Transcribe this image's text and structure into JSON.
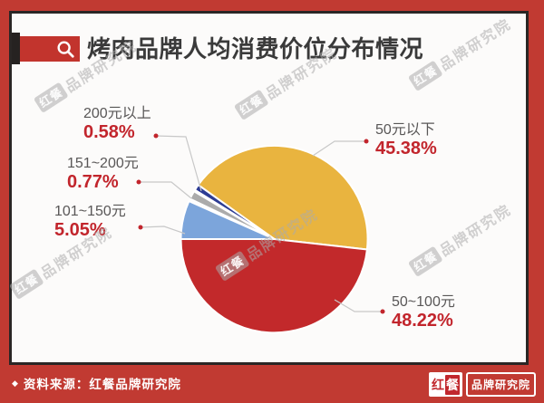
{
  "header": {
    "title": "烤肉品牌人均消费价位分布情况",
    "badge_icon": "magnifier",
    "badge_color": "#C2342D"
  },
  "chart_data": {
    "type": "pie",
    "title": "烤肉品牌人均消费价位分布情况",
    "value_format": "percent",
    "legend_position": "none",
    "slices": [
      {
        "id": "under-50",
        "label": "50元以下",
        "value": 45.38,
        "color": "#E9B43F"
      },
      {
        "id": "50-100",
        "label": "50~100元",
        "value": 48.22,
        "color": "#C2292B"
      },
      {
        "id": "101-150",
        "label": "101~150元",
        "value": 5.05,
        "color": "#7CA5DB"
      },
      {
        "id": "151-200",
        "label": "151~200元",
        "value": 0.77,
        "color": "#ABABAB"
      },
      {
        "id": "over-200",
        "label": "200元以上",
        "value": 0.58,
        "color": "#2D3C94"
      }
    ],
    "label_text_color": "#595757",
    "label_value_color": "#C2252C",
    "leader_line_color": "#C8C8C8"
  },
  "watermark": {
    "box_text": "红餐",
    "text": "品牌研究院"
  },
  "footer": {
    "bullet": "◆",
    "source_label": "资料来源：红餐品牌研究院",
    "logo_char_1": "红",
    "logo_char_2": "餐",
    "logo_text": "品牌研究院",
    "bar_color": "#C13A32"
  }
}
